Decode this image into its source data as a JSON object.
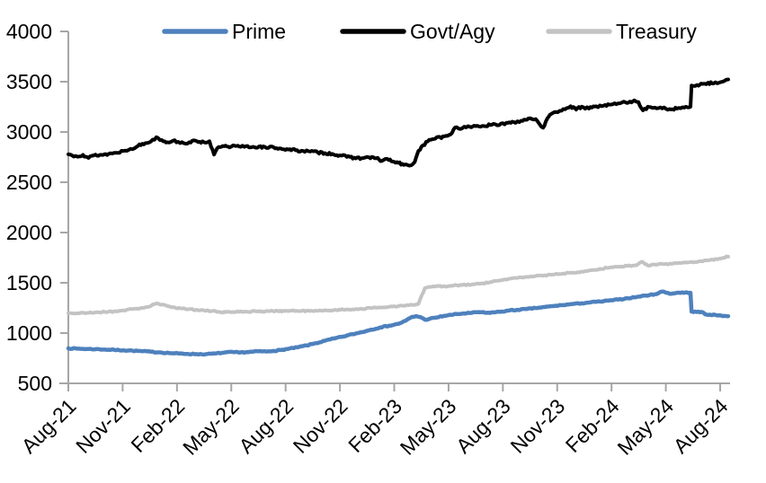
{
  "chart_data": {
    "type": "line",
    "title": "",
    "xlabel": "",
    "ylabel": "",
    "x_tick_labels": [
      "Aug-21",
      "Nov-21",
      "Feb-22",
      "May-22",
      "Aug-22",
      "Nov-22",
      "Feb-23",
      "May-23",
      "Aug-23",
      "Nov-23",
      "Feb-24",
      "May-24",
      "Aug-24"
    ],
    "x_unit": "months since Aug-2021 (ticks quarterly)",
    "x_range": [
      0,
      36
    ],
    "ylim": [
      500,
      4000
    ],
    "y_ticks": [
      500,
      1000,
      1500,
      2000,
      2500,
      3000,
      3500,
      4000
    ],
    "grid": false,
    "legend_position": "top",
    "axis_color": "#A6A6A6",
    "text_color": "#000000",
    "background": "#FFFFFF",
    "series": [
      {
        "name": "Prime",
        "color": "#4E81BD",
        "points": [
          [
            0,
            848
          ],
          [
            0.5,
            845
          ],
          [
            1,
            842
          ],
          [
            1.5,
            840
          ],
          [
            2,
            836
          ],
          [
            2.5,
            833
          ],
          [
            3,
            829
          ],
          [
            3.5,
            825
          ],
          [
            4,
            820
          ],
          [
            4.5,
            814
          ],
          [
            5,
            808
          ],
          [
            5.5,
            801
          ],
          [
            6,
            797
          ],
          [
            6.5,
            793
          ],
          [
            7,
            791
          ],
          [
            7.5,
            790
          ],
          [
            8,
            796
          ],
          [
            8.5,
            806
          ],
          [
            9,
            811
          ],
          [
            9.3,
            806
          ],
          [
            9.7,
            811
          ],
          [
            10,
            814
          ],
          [
            10.4,
            819
          ],
          [
            10.8,
            816
          ],
          [
            11.2,
            823
          ],
          [
            11.6,
            831
          ],
          [
            12,
            843
          ],
          [
            12.5,
            858
          ],
          [
            13,
            877
          ],
          [
            13.5,
            899
          ],
          [
            14,
            923
          ],
          [
            14.5,
            946
          ],
          [
            15,
            966
          ],
          [
            15.5,
            988
          ],
          [
            16,
            1009
          ],
          [
            16.5,
            1033
          ],
          [
            17,
            1056
          ],
          [
            17.5,
            1073
          ],
          [
            18,
            1092
          ],
          [
            18.4,
            1122
          ],
          [
            18.7,
            1156
          ],
          [
            19,
            1168
          ],
          [
            19.2,
            1160
          ],
          [
            19.45,
            1133
          ],
          [
            19.7,
            1141
          ],
          [
            20,
            1152
          ],
          [
            20.5,
            1171
          ],
          [
            21,
            1184
          ],
          [
            21.5,
            1194
          ],
          [
            22,
            1201
          ],
          [
            22.4,
            1209
          ],
          [
            22.8,
            1201
          ],
          [
            23.2,
            1206
          ],
          [
            23.6,
            1213
          ],
          [
            24,
            1223
          ],
          [
            24.5,
            1231
          ],
          [
            25,
            1239
          ],
          [
            25.5,
            1249
          ],
          [
            26,
            1259
          ],
          [
            26.5,
            1269
          ],
          [
            27,
            1279
          ],
          [
            27.5,
            1289
          ],
          [
            28,
            1296
          ],
          [
            28.5,
            1306
          ],
          [
            29,
            1313
          ],
          [
            29.5,
            1323
          ],
          [
            30,
            1333
          ],
          [
            30.5,
            1346
          ],
          [
            31,
            1359
          ],
          [
            31.5,
            1373
          ],
          [
            32,
            1386
          ],
          [
            32.4,
            1413
          ],
          [
            32.9,
            1391
          ],
          [
            33.3,
            1403
          ],
          [
            33.94,
            1401
          ],
          [
            34.0,
            1213
          ],
          [
            34.3,
            1210
          ],
          [
            34.6,
            1207
          ],
          [
            34.75,
            1186
          ],
          [
            35,
            1183
          ],
          [
            35.5,
            1176
          ],
          [
            36,
            1168
          ]
        ]
      },
      {
        "name": "Govt/Agy",
        "color": "#000000",
        "points": [
          [
            0,
            2778
          ],
          [
            0.4,
            2762
          ],
          [
            0.8,
            2772
          ],
          [
            1.1,
            2742
          ],
          [
            1.4,
            2768
          ],
          [
            1.8,
            2772
          ],
          [
            2.2,
            2782
          ],
          [
            2.6,
            2792
          ],
          [
            3,
            2812
          ],
          [
            3.4,
            2832
          ],
          [
            3.8,
            2862
          ],
          [
            4.2,
            2888
          ],
          [
            4.5,
            2905
          ],
          [
            4.8,
            2948
          ],
          [
            5.1,
            2920
          ],
          [
            5.4,
            2898
          ],
          [
            5.7,
            2912
          ],
          [
            6,
            2902
          ],
          [
            6.3,
            2888
          ],
          [
            6.6,
            2898
          ],
          [
            7,
            2910
          ],
          [
            7.4,
            2898
          ],
          [
            7.7,
            2908
          ],
          [
            7.95,
            2775
          ],
          [
            8.2,
            2850
          ],
          [
            8.5,
            2858
          ],
          [
            8.8,
            2846
          ],
          [
            9.1,
            2862
          ],
          [
            9.4,
            2852
          ],
          [
            9.7,
            2860
          ],
          [
            10,
            2848
          ],
          [
            10.4,
            2855
          ],
          [
            10.8,
            2842
          ],
          [
            11.2,
            2848
          ],
          [
            11.6,
            2835
          ],
          [
            12,
            2825
          ],
          [
            12.4,
            2818
          ],
          [
            12.8,
            2812
          ],
          [
            13.2,
            2805
          ],
          [
            13.6,
            2798
          ],
          [
            14,
            2790
          ],
          [
            14.4,
            2782
          ],
          [
            14.8,
            2768
          ],
          [
            15.2,
            2752
          ],
          [
            15.6,
            2745
          ],
          [
            16,
            2738
          ],
          [
            16.4,
            2748
          ],
          [
            16.8,
            2738
          ],
          [
            17.1,
            2712
          ],
          [
            17.4,
            2732
          ],
          [
            17.7,
            2705
          ],
          [
            18,
            2692
          ],
          [
            18.3,
            2672
          ],
          [
            18.6,
            2665
          ],
          [
            18.9,
            2702
          ],
          [
            19.1,
            2812
          ],
          [
            19.35,
            2868
          ],
          [
            19.6,
            2905
          ],
          [
            19.85,
            2928
          ],
          [
            20.1,
            2948
          ],
          [
            20.35,
            2938
          ],
          [
            20.6,
            2962
          ],
          [
            20.85,
            2975
          ],
          [
            21.1,
            3045
          ],
          [
            21.5,
            3038
          ],
          [
            21.9,
            3052
          ],
          [
            22.3,
            3062
          ],
          [
            22.7,
            3058
          ],
          [
            23.1,
            3072
          ],
          [
            23.5,
            3068
          ],
          [
            23.9,
            3092
          ],
          [
            24.3,
            3098
          ],
          [
            24.7,
            3112
          ],
          [
            25.1,
            3135
          ],
          [
            25.5,
            3128
          ],
          [
            25.9,
            3042
          ],
          [
            26.2,
            3152
          ],
          [
            26.6,
            3198
          ],
          [
            27,
            3228
          ],
          [
            27.4,
            3255
          ],
          [
            27.7,
            3222
          ],
          [
            28,
            3252
          ],
          [
            28.4,
            3232
          ],
          [
            28.8,
            3255
          ],
          [
            29.2,
            3262
          ],
          [
            29.6,
            3272
          ],
          [
            30,
            3285
          ],
          [
            30.4,
            3295
          ],
          [
            30.8,
            3305
          ],
          [
            31.1,
            3298
          ],
          [
            31.35,
            3215
          ],
          [
            31.7,
            3248
          ],
          [
            32,
            3242
          ],
          [
            32.4,
            3235
          ],
          [
            32.8,
            3228
          ],
          [
            33.2,
            3232
          ],
          [
            33.6,
            3242
          ],
          [
            33.94,
            3250
          ],
          [
            34.0,
            3462
          ],
          [
            34.3,
            3468
          ],
          [
            34.6,
            3478
          ],
          [
            34.9,
            3490
          ],
          [
            35.2,
            3482
          ],
          [
            35.5,
            3490
          ],
          [
            36,
            3522
          ]
        ]
      },
      {
        "name": "Treasury",
        "color": "#C3C3C3",
        "points": [
          [
            0,
            1200
          ],
          [
            0.5,
            1196
          ],
          [
            1,
            1200
          ],
          [
            1.5,
            1206
          ],
          [
            2,
            1210
          ],
          [
            2.5,
            1216
          ],
          [
            3,
            1226
          ],
          [
            3.5,
            1238
          ],
          [
            4,
            1250
          ],
          [
            4.4,
            1262
          ],
          [
            4.8,
            1295
          ],
          [
            5.1,
            1282
          ],
          [
            5.4,
            1268
          ],
          [
            5.8,
            1255
          ],
          [
            6.2,
            1245
          ],
          [
            6.6,
            1238
          ],
          [
            7,
            1232
          ],
          [
            7.4,
            1225
          ],
          [
            7.8,
            1218
          ],
          [
            8.2,
            1212
          ],
          [
            8.6,
            1208
          ],
          [
            9,
            1210
          ],
          [
            9.4,
            1215
          ],
          [
            9.8,
            1212
          ],
          [
            10.2,
            1218
          ],
          [
            10.6,
            1214
          ],
          [
            11,
            1218
          ],
          [
            11.4,
            1222
          ],
          [
            11.8,
            1219
          ],
          [
            12.2,
            1223
          ],
          [
            12.6,
            1219
          ],
          [
            13,
            1222
          ],
          [
            13.4,
            1218
          ],
          [
            13.8,
            1222
          ],
          [
            14.2,
            1226
          ],
          [
            14.6,
            1230
          ],
          [
            15,
            1233
          ],
          [
            15.5,
            1236
          ],
          [
            16,
            1242
          ],
          [
            16.5,
            1248
          ],
          [
            17,
            1255
          ],
          [
            17.5,
            1262
          ],
          [
            18,
            1268
          ],
          [
            18.4,
            1273
          ],
          [
            18.8,
            1280
          ],
          [
            19.1,
            1290
          ],
          [
            19.45,
            1448
          ],
          [
            19.8,
            1460
          ],
          [
            20.2,
            1468
          ],
          [
            20.6,
            1460
          ],
          [
            21,
            1472
          ],
          [
            21.5,
            1478
          ],
          [
            22,
            1482
          ],
          [
            22.5,
            1492
          ],
          [
            23,
            1505
          ],
          [
            23.5,
            1522
          ],
          [
            24,
            1538
          ],
          [
            24.5,
            1548
          ],
          [
            25,
            1560
          ],
          [
            25.5,
            1568
          ],
          [
            26,
            1575
          ],
          [
            26.5,
            1582
          ],
          [
            27,
            1592
          ],
          [
            27.5,
            1602
          ],
          [
            28,
            1612
          ],
          [
            28.5,
            1625
          ],
          [
            29,
            1638
          ],
          [
            29.5,
            1650
          ],
          [
            30,
            1660
          ],
          [
            30.5,
            1668
          ],
          [
            31,
            1675
          ],
          [
            31.3,
            1710
          ],
          [
            31.6,
            1672
          ],
          [
            32,
            1680
          ],
          [
            32.5,
            1685
          ],
          [
            33,
            1692
          ],
          [
            33.5,
            1698
          ],
          [
            34,
            1708
          ],
          [
            34.5,
            1715
          ],
          [
            35,
            1726
          ],
          [
            35.5,
            1740
          ],
          [
            36,
            1760
          ]
        ]
      }
    ]
  }
}
